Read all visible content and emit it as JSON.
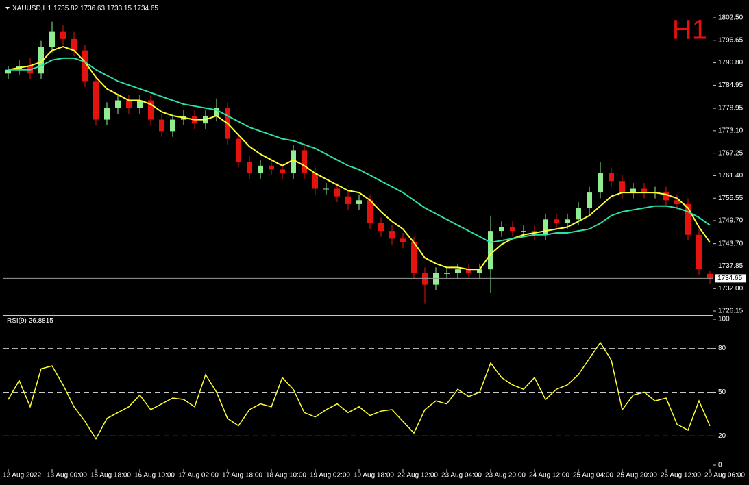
{
  "header": {
    "symbol": "XAUUSD,H1"
  },
  "timeframe_label": "H1",
  "chart_data": [
    {
      "type": "candlestick",
      "categories": [
        "12 Aug 2022",
        null,
        null,
        null,
        "13 Aug 00:00",
        null,
        null,
        null,
        "15 Aug 18:00",
        null,
        null,
        null,
        "16 Aug 10:00",
        null,
        null,
        null,
        "17 Aug 02:00",
        null,
        null,
        null,
        "17 Aug 18:00",
        null,
        null,
        null,
        "18 Aug 10:00",
        null,
        null,
        null,
        "19 Aug 02:00",
        null,
        null,
        null,
        "19 Aug 18:00",
        null,
        null,
        null,
        "22 Aug 12:00",
        null,
        null,
        null,
        "23 Aug 04:00",
        null,
        null,
        null,
        "23 Aug 20:00",
        null,
        null,
        null,
        "24 Aug 12:00",
        null,
        null,
        null,
        "25 Aug 04:00",
        null,
        null,
        null,
        "25 Aug 20:00",
        null,
        null,
        null,
        "26 Aug 12:00",
        null,
        null,
        null,
        "29 Aug 06:00"
      ],
      "open": [
        1788,
        1789,
        1790,
        1788,
        1795,
        1799,
        1797,
        1794,
        1786,
        1776,
        1779,
        1781,
        1779,
        1781,
        1776,
        1773,
        1776,
        1777,
        1775,
        1777,
        1779,
        1771,
        1765,
        1762,
        1764,
        1763,
        1762,
        1768,
        1762,
        1758,
        1758,
        1756,
        1754,
        1755,
        1749,
        1747,
        1745,
        1744,
        1736,
        1733,
        1736,
        1736,
        1737,
        1736,
        1737,
        1747,
        1748,
        1747,
        1747,
        1746,
        1750,
        1749,
        1750,
        1753,
        1757,
        1762,
        1760,
        1757,
        1758,
        1757,
        1757,
        1755,
        1754,
        1746,
        1735.82
      ],
      "high": [
        1790,
        1791.5,
        1792,
        1796.5,
        1801.5,
        1800.5,
        1799,
        1795.5,
        1787.5,
        1780.5,
        1782.5,
        1782.5,
        1782.5,
        1782.5,
        1777.5,
        1777.5,
        1778.5,
        1778.5,
        1778.5,
        1781.5,
        1780.5,
        1772.5,
        1766.5,
        1765.5,
        1765.5,
        1764.5,
        1769.5,
        1769.5,
        1763.5,
        1759.5,
        1759.5,
        1757.5,
        1756.5,
        1756.5,
        1750.5,
        1748.5,
        1746.5,
        1745.5,
        1737.5,
        1737.5,
        1737.5,
        1738.5,
        1738.5,
        1738.5,
        1751,
        1749.5,
        1749.5,
        1748.5,
        1748.5,
        1751.5,
        1751.5,
        1751.5,
        1754.5,
        1758.5,
        1765,
        1763.5,
        1761.5,
        1759.5,
        1759.5,
        1758.5,
        1758.5,
        1756.5,
        1755.5,
        1747.5,
        1736.63
      ],
      "low": [
        1786.5,
        1787.5,
        1786.5,
        1786.5,
        1793.5,
        1795.5,
        1792.5,
        1784.5,
        1774.5,
        1774.5,
        1777.5,
        1777.5,
        1777.5,
        1774.5,
        1771.5,
        1771.5,
        1774.5,
        1773.5,
        1773.5,
        1775.5,
        1769.5,
        1763.5,
        1760.5,
        1760.5,
        1761.5,
        1760.5,
        1760.5,
        1760.5,
        1756.5,
        1756.5,
        1754.5,
        1752.5,
        1752.5,
        1747.5,
        1745.5,
        1743.5,
        1742.5,
        1734.5,
        1728,
        1731.5,
        1734.5,
        1734.5,
        1734.5,
        1734.5,
        1731,
        1745.5,
        1745.5,
        1745.5,
        1744.5,
        1744.5,
        1747.5,
        1747.5,
        1748.5,
        1751.5,
        1755.5,
        1758.5,
        1755.5,
        1755.5,
        1755.5,
        1755.5,
        1753.5,
        1752.5,
        1744.5,
        1735.5,
        1733.15
      ],
      "close": [
        1789,
        1790,
        1788,
        1795,
        1799,
        1797,
        1794,
        1786,
        1776,
        1779,
        1781,
        1779,
        1781,
        1776,
        1773,
        1776,
        1777,
        1775,
        1777,
        1779,
        1771,
        1765,
        1762,
        1764,
        1763,
        1762,
        1768,
        1762,
        1758,
        1758,
        1756,
        1754,
        1755,
        1749,
        1747,
        1745,
        1744,
        1736,
        1733,
        1736,
        1736,
        1737,
        1736,
        1737,
        1747,
        1748,
        1747,
        1747,
        1746,
        1750,
        1749,
        1750,
        1753,
        1757,
        1762,
        1760,
        1757,
        1758,
        1757,
        1757,
        1755,
        1754,
        1746,
        1737,
        1734.65
      ],
      "up_color": "#90ee90",
      "down_color": "#e3140f",
      "overlays": [
        {
          "color": "#ffff33",
          "values": [
            1789,
            1789.5,
            1790,
            1791,
            1794,
            1795,
            1794,
            1791,
            1787,
            1784,
            1782.5,
            1781,
            1781,
            1780,
            1778,
            1777,
            1776.5,
            1776,
            1776,
            1777,
            1775,
            1772,
            1769,
            1767,
            1765.5,
            1764,
            1765.5,
            1764,
            1762,
            1760.5,
            1759,
            1757.5,
            1757,
            1755,
            1752,
            1749.5,
            1747.5,
            1744,
            1740,
            1738.5,
            1737.5,
            1737.5,
            1737,
            1737,
            1741,
            1743.5,
            1745,
            1746,
            1746.5,
            1747,
            1747.5,
            1748,
            1749.5,
            1751,
            1753.5,
            1756,
            1757,
            1757,
            1757,
            1757,
            1756.5,
            1755.5,
            1753,
            1748,
            1744
          ]
        },
        {
          "color": "#2ee0a8",
          "values": [
            1789,
            1789,
            1789,
            1790,
            1791.5,
            1792,
            1792,
            1791,
            1789,
            1787.5,
            1786,
            1785,
            1784,
            1783,
            1782,
            1781,
            1780,
            1779.5,
            1779,
            1778.5,
            1777,
            1775.5,
            1774,
            1773,
            1772,
            1771,
            1770.5,
            1769.5,
            1768.5,
            1767,
            1765.5,
            1764,
            1763,
            1761.5,
            1760,
            1758.5,
            1757,
            1755,
            1753,
            1751.5,
            1750,
            1748.5,
            1747,
            1745.5,
            1744,
            1744.5,
            1745,
            1745.5,
            1746,
            1746,
            1746.5,
            1746.5,
            1747,
            1747.5,
            1749,
            1751,
            1752,
            1752.5,
            1753,
            1753.5,
            1753.5,
            1753,
            1752,
            1750.5,
            1748.5
          ]
        }
      ],
      "ylim": [
        1725.44,
        1805.0
      ],
      "yticks": [
        {
          "value": 1802.5,
          "label": "1802.50"
        },
        1796.65,
        {
          "value": 1790.8,
          "label": "1790.80"
        },
        1784.95,
        1778.95,
        {
          "value": 1773.1,
          "label": "1773.10"
        },
        1767.25,
        {
          "value": 1761.4,
          "label": "1761.40"
        },
        1755.55,
        {
          "value": 1749.7,
          "label": "1749.70"
        },
        {
          "value": 1743.7,
          "label": "1743.70"
        },
        1737.85,
        {
          "value": 1732,
          "label": "1732.00"
        },
        1726.15
      ]
    },
    {
      "type": "line",
      "label": "RSI(9)",
      "color": "#ffff33",
      "values": [
        45,
        58,
        40,
        66,
        68,
        55,
        40,
        30,
        18,
        32,
        36,
        40,
        48,
        38,
        42,
        46,
        45,
        40,
        62,
        50,
        32,
        27,
        38,
        42,
        40,
        60,
        52,
        36,
        33,
        38,
        42,
        36,
        40,
        34,
        37,
        38,
        30,
        22,
        38,
        44,
        42,
        52,
        47,
        50,
        70,
        60,
        55,
        52,
        60,
        45,
        52,
        55,
        62,
        73,
        84,
        72,
        38,
        48,
        50,
        44,
        46,
        28,
        24,
        44,
        26.8815
      ],
      "ylim": [
        0,
        100
      ],
      "yticks": [
        0,
        20,
        50,
        80,
        100
      ],
      "levels": [
        20,
        50,
        80
      ]
    }
  ]
}
